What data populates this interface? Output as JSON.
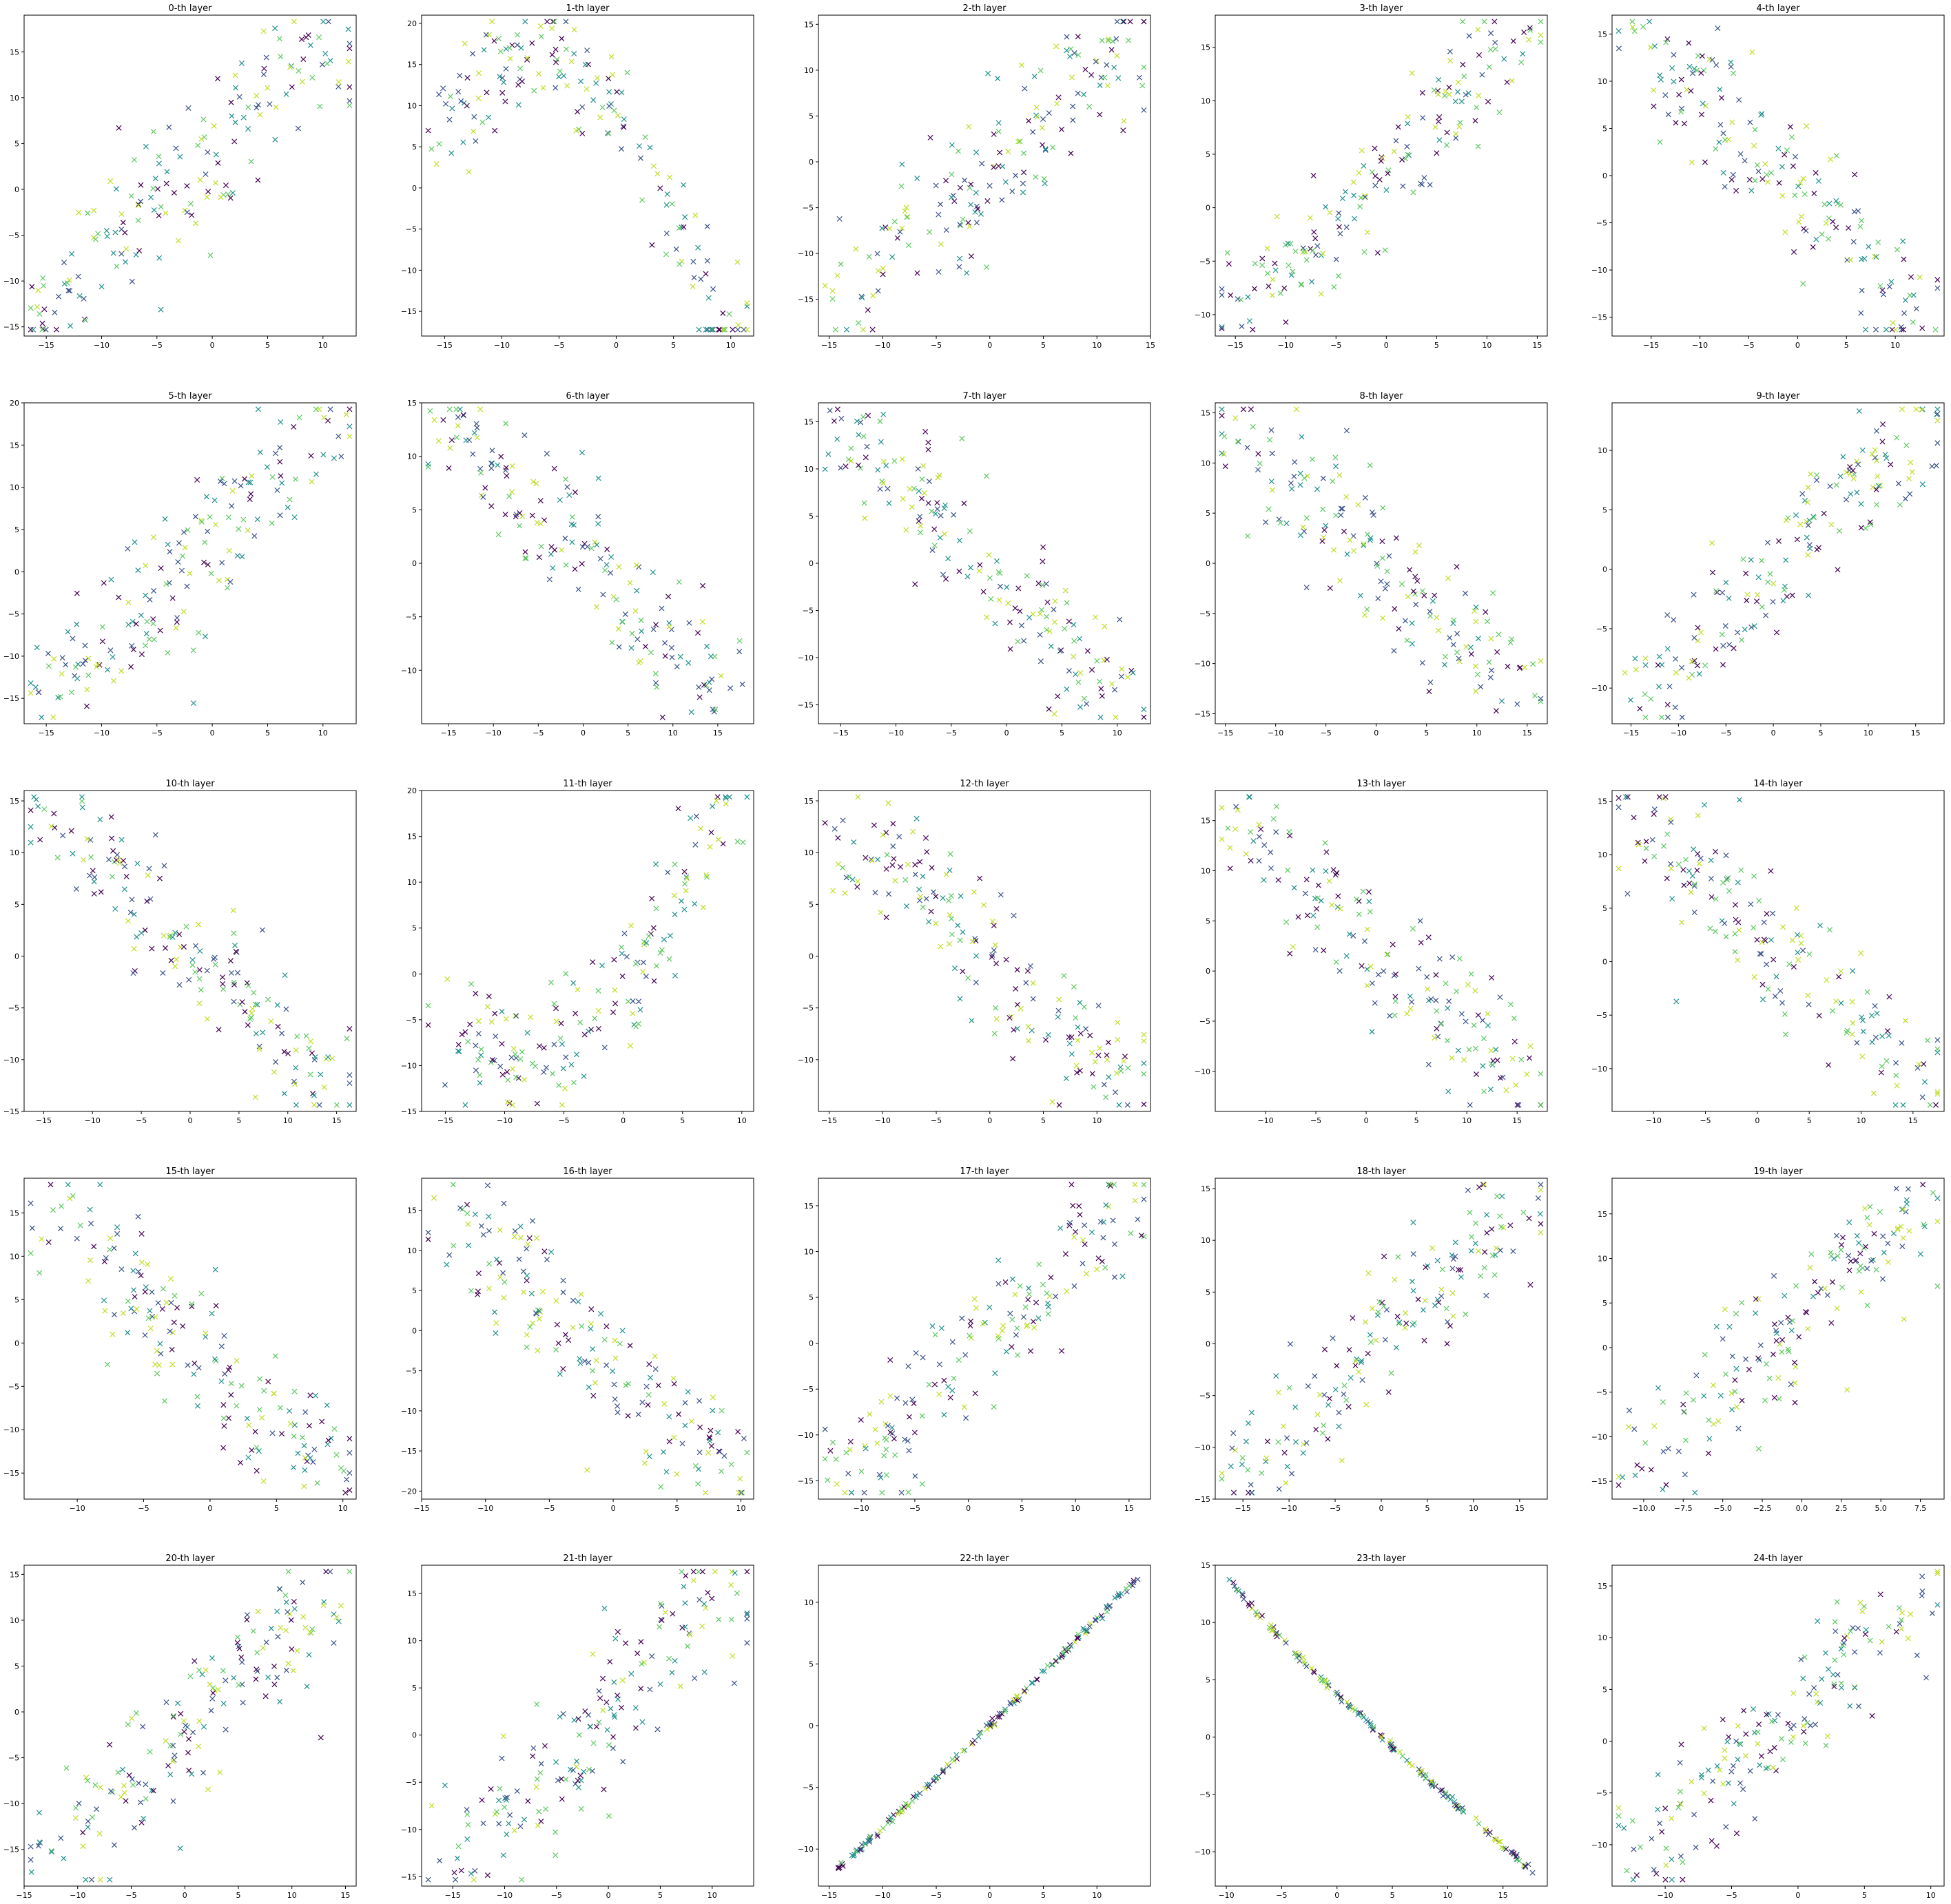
{
  "chart_data": [
    {
      "title": "0-th layer",
      "type": "scatter",
      "marker": "x",
      "shape": "diagonal-up",
      "n": 170,
      "seed": 1,
      "xlim": [
        -17,
        13
      ],
      "ylim": [
        -16,
        19
      ],
      "xticks": [
        -15,
        -10,
        -5,
        0,
        5,
        10
      ],
      "yticks": [
        -15,
        -10,
        -5,
        0,
        5,
        10,
        15
      ]
    },
    {
      "title": "1-th layer",
      "type": "scatter",
      "marker": "x",
      "shape": "arch",
      "n": 170,
      "seed": 2,
      "xlim": [
        -17,
        12
      ],
      "ylim": [
        -18,
        21
      ],
      "xticks": [
        -15,
        -10,
        -5,
        0,
        5,
        10
      ],
      "yticks": [
        -15,
        -10,
        -5,
        0,
        5,
        10,
        15,
        20
      ]
    },
    {
      "title": "2-th layer",
      "type": "scatter",
      "marker": "x",
      "shape": "diagonal-up",
      "n": 170,
      "seed": 3,
      "xlim": [
        -16,
        15
      ],
      "ylim": [
        -19,
        16
      ],
      "xticks": [
        -15,
        -10,
        -5,
        0,
        5,
        10,
        15
      ],
      "yticks": [
        -15,
        -10,
        -5,
        0,
        5,
        10,
        15
      ]
    },
    {
      "title": "3-th layer",
      "type": "scatter",
      "marker": "x",
      "shape": "diagonal-up",
      "n": 170,
      "seed": 4,
      "xlim": [
        -17,
        16
      ],
      "ylim": [
        -12,
        18
      ],
      "xticks": [
        -15,
        -10,
        -5,
        0,
        5,
        10,
        15
      ],
      "yticks": [
        -10,
        -5,
        0,
        5,
        10,
        15
      ]
    },
    {
      "title": "4-th layer",
      "type": "scatter",
      "marker": "x",
      "shape": "diagonal-down",
      "n": 170,
      "seed": 5,
      "xlim": [
        -19,
        15
      ],
      "ylim": [
        -17,
        17
      ],
      "xticks": [
        -15,
        -10,
        -5,
        0,
        5,
        10
      ],
      "yticks": [
        -15,
        -10,
        -5,
        0,
        5,
        10,
        15
      ]
    },
    {
      "title": "5-th layer",
      "type": "scatter",
      "marker": "x",
      "shape": "diagonal-up",
      "n": 170,
      "seed": 6,
      "xlim": [
        -17,
        13
      ],
      "ylim": [
        -18,
        20
      ],
      "xticks": [
        -15,
        -10,
        -5,
        0,
        5,
        10
      ],
      "yticks": [
        -15,
        -10,
        -5,
        0,
        5,
        10,
        15,
        20
      ]
    },
    {
      "title": "6-th layer",
      "type": "scatter",
      "marker": "x",
      "shape": "diagonal-down",
      "n": 170,
      "seed": 7,
      "xlim": [
        -18,
        19
      ],
      "ylim": [
        -15,
        15
      ],
      "xticks": [
        -15,
        -10,
        -5,
        0,
        5,
        10,
        15
      ],
      "yticks": [
        -10,
        -5,
        0,
        5,
        10,
        15
      ]
    },
    {
      "title": "7-th layer",
      "type": "scatter",
      "marker": "x",
      "shape": "diagonal-down",
      "n": 170,
      "seed": 8,
      "xlim": [
        -17,
        13
      ],
      "ylim": [
        -17,
        17
      ],
      "xticks": [
        -15,
        -10,
        -5,
        0,
        5,
        10
      ],
      "yticks": [
        -15,
        -10,
        -5,
        0,
        5,
        10,
        15
      ]
    },
    {
      "title": "8-th layer",
      "type": "scatter",
      "marker": "x",
      "shape": "diagonal-down",
      "n": 170,
      "seed": 9,
      "xlim": [
        -16,
        17
      ],
      "ylim": [
        -16,
        16
      ],
      "xticks": [
        -15,
        -10,
        -5,
        0,
        5,
        10,
        15
      ],
      "yticks": [
        -15,
        -10,
        -5,
        0,
        5,
        10,
        15
      ]
    },
    {
      "title": "9-th layer",
      "type": "scatter",
      "marker": "x",
      "shape": "diagonal-up",
      "n": 170,
      "seed": 10,
      "xlim": [
        -17,
        18
      ],
      "ylim": [
        -13,
        14
      ],
      "xticks": [
        -15,
        -10,
        -5,
        0,
        5,
        10,
        15
      ],
      "yticks": [
        -10,
        -5,
        0,
        5,
        10
      ]
    },
    {
      "title": "10-th layer",
      "type": "scatter",
      "marker": "x",
      "shape": "diagonal-down",
      "n": 170,
      "seed": 11,
      "xlim": [
        -17,
        17
      ],
      "ylim": [
        -15,
        16
      ],
      "xticks": [
        -15,
        -10,
        -5,
        0,
        5,
        10,
        15
      ],
      "yticks": [
        -15,
        -10,
        -5,
        0,
        5,
        10,
        15
      ]
    },
    {
      "title": "11-th layer",
      "type": "scatter",
      "marker": "x",
      "shape": "valley",
      "n": 170,
      "seed": 12,
      "xlim": [
        -17,
        11
      ],
      "ylim": [
        -15,
        20
      ],
      "xticks": [
        -15,
        -10,
        -5,
        0,
        5,
        10
      ],
      "yticks": [
        -15,
        -10,
        -5,
        0,
        5,
        10,
        15,
        20
      ]
    },
    {
      "title": "12-th layer",
      "type": "scatter",
      "marker": "x",
      "shape": "diagonal-down",
      "n": 170,
      "seed": 13,
      "xlim": [
        -16,
        15
      ],
      "ylim": [
        -15,
        16
      ],
      "xticks": [
        -15,
        -10,
        -5,
        0,
        5,
        10
      ],
      "yticks": [
        -10,
        -5,
        0,
        5,
        10,
        15
      ]
    },
    {
      "title": "13-th layer",
      "type": "scatter",
      "marker": "x",
      "shape": "diagonal-down",
      "n": 170,
      "seed": 14,
      "xlim": [
        -15,
        18
      ],
      "ylim": [
        -14,
        18
      ],
      "xticks": [
        -10,
        -5,
        0,
        5,
        10,
        15
      ],
      "yticks": [
        -10,
        -5,
        0,
        5,
        10,
        15
      ]
    },
    {
      "title": "14-th layer",
      "type": "scatter",
      "marker": "x",
      "shape": "diagonal-down",
      "n": 170,
      "seed": 15,
      "xlim": [
        -14,
        18
      ],
      "ylim": [
        -14,
        16
      ],
      "xticks": [
        -10,
        -5,
        0,
        5,
        10,
        15
      ],
      "yticks": [
        -10,
        -5,
        0,
        5,
        10,
        15
      ]
    },
    {
      "title": "15-th layer",
      "type": "scatter",
      "marker": "x",
      "shape": "diagonal-down",
      "n": 170,
      "seed": 16,
      "xlim": [
        -14,
        11
      ],
      "ylim": [
        -18,
        19
      ],
      "xticks": [
        -10,
        -5,
        0,
        5,
        10
      ],
      "yticks": [
        -15,
        -10,
        -5,
        0,
        5,
        10,
        15
      ]
    },
    {
      "title": "16-th layer",
      "type": "scatter",
      "marker": "x",
      "shape": "diagonal-down",
      "n": 170,
      "seed": 17,
      "xlim": [
        -15,
        11
      ],
      "ylim": [
        -21,
        19
      ],
      "xticks": [
        -15,
        -10,
        -5,
        0,
        5,
        10
      ],
      "yticks": [
        -20,
        -15,
        -10,
        -5,
        0,
        5,
        10,
        15
      ]
    },
    {
      "title": "17-th layer",
      "type": "scatter",
      "marker": "x",
      "shape": "diagonal-up",
      "n": 170,
      "seed": 18,
      "xlim": [
        -14,
        17
      ],
      "ylim": [
        -17,
        18
      ],
      "xticks": [
        -10,
        -5,
        0,
        5,
        10,
        15
      ],
      "yticks": [
        -15,
        -10,
        -5,
        0,
        5,
        10,
        15
      ]
    },
    {
      "title": "18-th layer",
      "type": "scatter",
      "marker": "x",
      "shape": "diagonal-up",
      "n": 170,
      "seed": 19,
      "xlim": [
        -18,
        18
      ],
      "ylim": [
        -15,
        16
      ],
      "xticks": [
        -15,
        -10,
        -5,
        0,
        5,
        10,
        15
      ],
      "yticks": [
        -15,
        -10,
        -5,
        0,
        5,
        10,
        15
      ]
    },
    {
      "title": "19-th layer",
      "type": "scatter",
      "marker": "x",
      "shape": "diagonal-up",
      "n": 170,
      "seed": 20,
      "xlim": [
        -12,
        9
      ],
      "ylim": [
        -17,
        19
      ],
      "xticks": [
        -10.0,
        -7.5,
        -5.0,
        -2.5,
        0.0,
        2.5,
        5.0,
        7.5
      ],
      "xtick_labels": [
        "−10.0",
        "−7.5",
        "−5.0",
        "−2.5",
        "0.0",
        "2.5",
        "5.0",
        "7.5"
      ],
      "yticks": [
        -15,
        -10,
        -5,
        0,
        5,
        10,
        15
      ]
    },
    {
      "title": "20-th layer",
      "type": "scatter",
      "marker": "x",
      "shape": "diagonal-up",
      "n": 170,
      "seed": 21,
      "xlim": [
        -15,
        16
      ],
      "ylim": [
        -19,
        16
      ],
      "xticks": [
        -15,
        -10,
        -5,
        0,
        5,
        10,
        15
      ],
      "yticks": [
        -15,
        -10,
        -5,
        0,
        5,
        10,
        15
      ]
    },
    {
      "title": "21-th layer",
      "type": "scatter",
      "marker": "x",
      "shape": "diagonal-up",
      "n": 170,
      "seed": 22,
      "xlim": [
        -18,
        14
      ],
      "ylim": [
        -16,
        18
      ],
      "xticks": [
        -15,
        -10,
        -5,
        0,
        5,
        10
      ],
      "yticks": [
        -15,
        -10,
        -5,
        0,
        5,
        10,
        15
      ]
    },
    {
      "title": "22-th layer",
      "type": "scatter",
      "marker": "x",
      "shape": "line-up",
      "n": 170,
      "seed": 23,
      "xlim": [
        -16,
        15
      ],
      "ylim": [
        -13,
        13
      ],
      "xticks": [
        -15,
        -10,
        -5,
        0,
        5,
        10
      ],
      "yticks": [
        -10,
        -5,
        0,
        5,
        10
      ]
    },
    {
      "title": "23-th layer",
      "type": "scatter",
      "marker": "x",
      "shape": "line-down",
      "n": 170,
      "seed": 24,
      "xlim": [
        -11,
        19
      ],
      "ylim": [
        -13,
        15
      ],
      "xticks": [
        -10,
        -5,
        0,
        5,
        10,
        15
      ],
      "yticks": [
        -10,
        -5,
        0,
        5,
        10,
        15
      ]
    },
    {
      "title": "24-th layer",
      "type": "scatter",
      "marker": "x",
      "shape": "diagonal-up",
      "n": 170,
      "seed": 25,
      "xlim": [
        -14,
        11
      ],
      "ylim": [
        -14,
        17
      ],
      "xticks": [
        -10,
        -5,
        0,
        5,
        10
      ],
      "yticks": [
        -10,
        -5,
        0,
        5,
        10,
        15
      ]
    }
  ],
  "palette": [
    "#440154",
    "#3b528b",
    "#21918c",
    "#5ec962",
    "#bddf26"
  ]
}
